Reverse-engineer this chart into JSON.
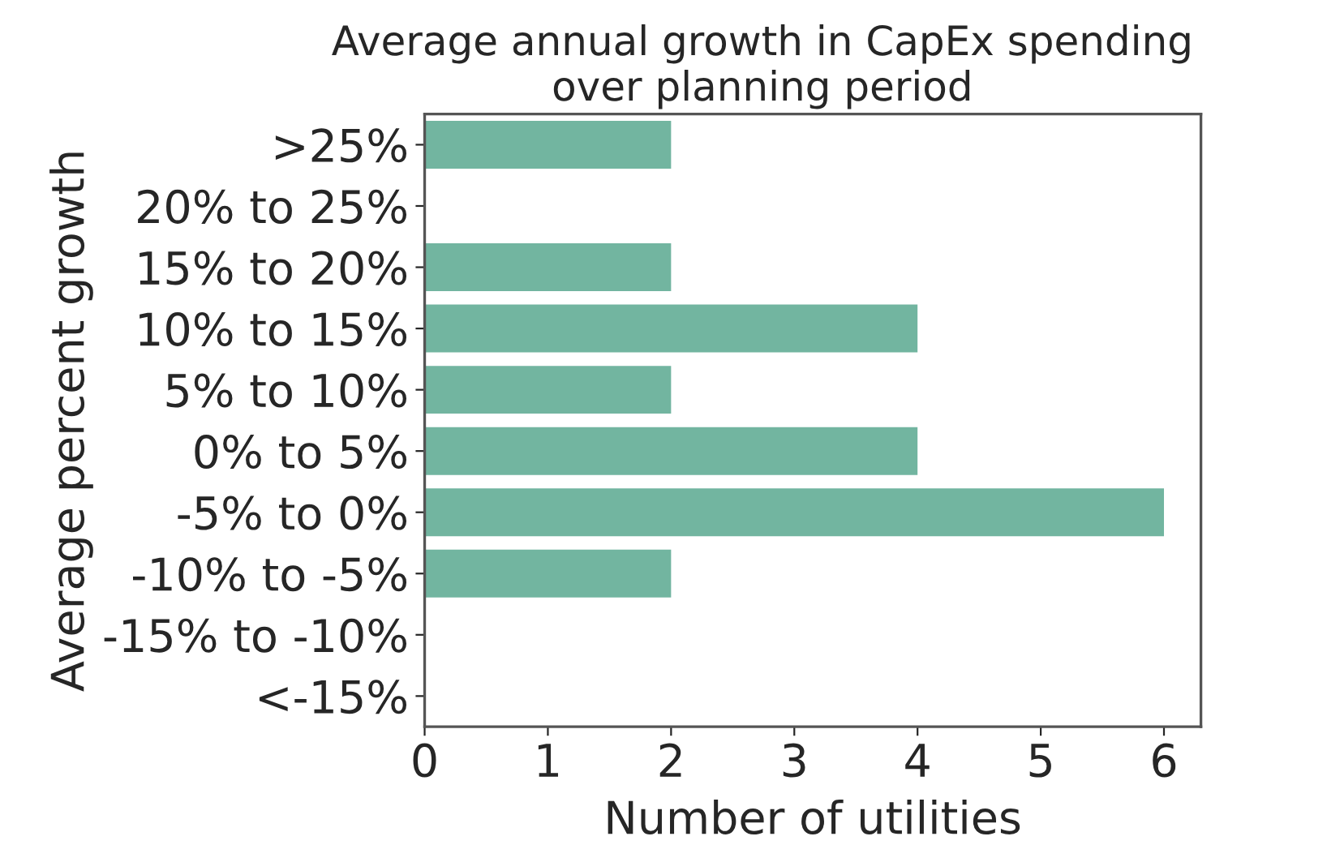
{
  "chart_data": {
    "type": "bar",
    "orientation": "horizontal",
    "title": "Average annual growth in CapEx spending\nover planning period",
    "xlabel": "Number of utilities",
    "ylabel": "Average percent growth",
    "categories": [
      ">25%",
      "20% to 25%",
      "15% to 20%",
      "10% to 15%",
      "5% to 10%",
      "0% to 5%",
      "-5% to 0%",
      "-10% to -5%",
      "-15% to -10%",
      "<-15%"
    ],
    "values": [
      2,
      0,
      2,
      4,
      2,
      4,
      6,
      2,
      0,
      0
    ],
    "color": "#72b5a0",
    "xlim": [
      0,
      6.3
    ],
    "xticks": [
      0,
      1,
      2,
      3,
      4,
      5,
      6
    ]
  }
}
